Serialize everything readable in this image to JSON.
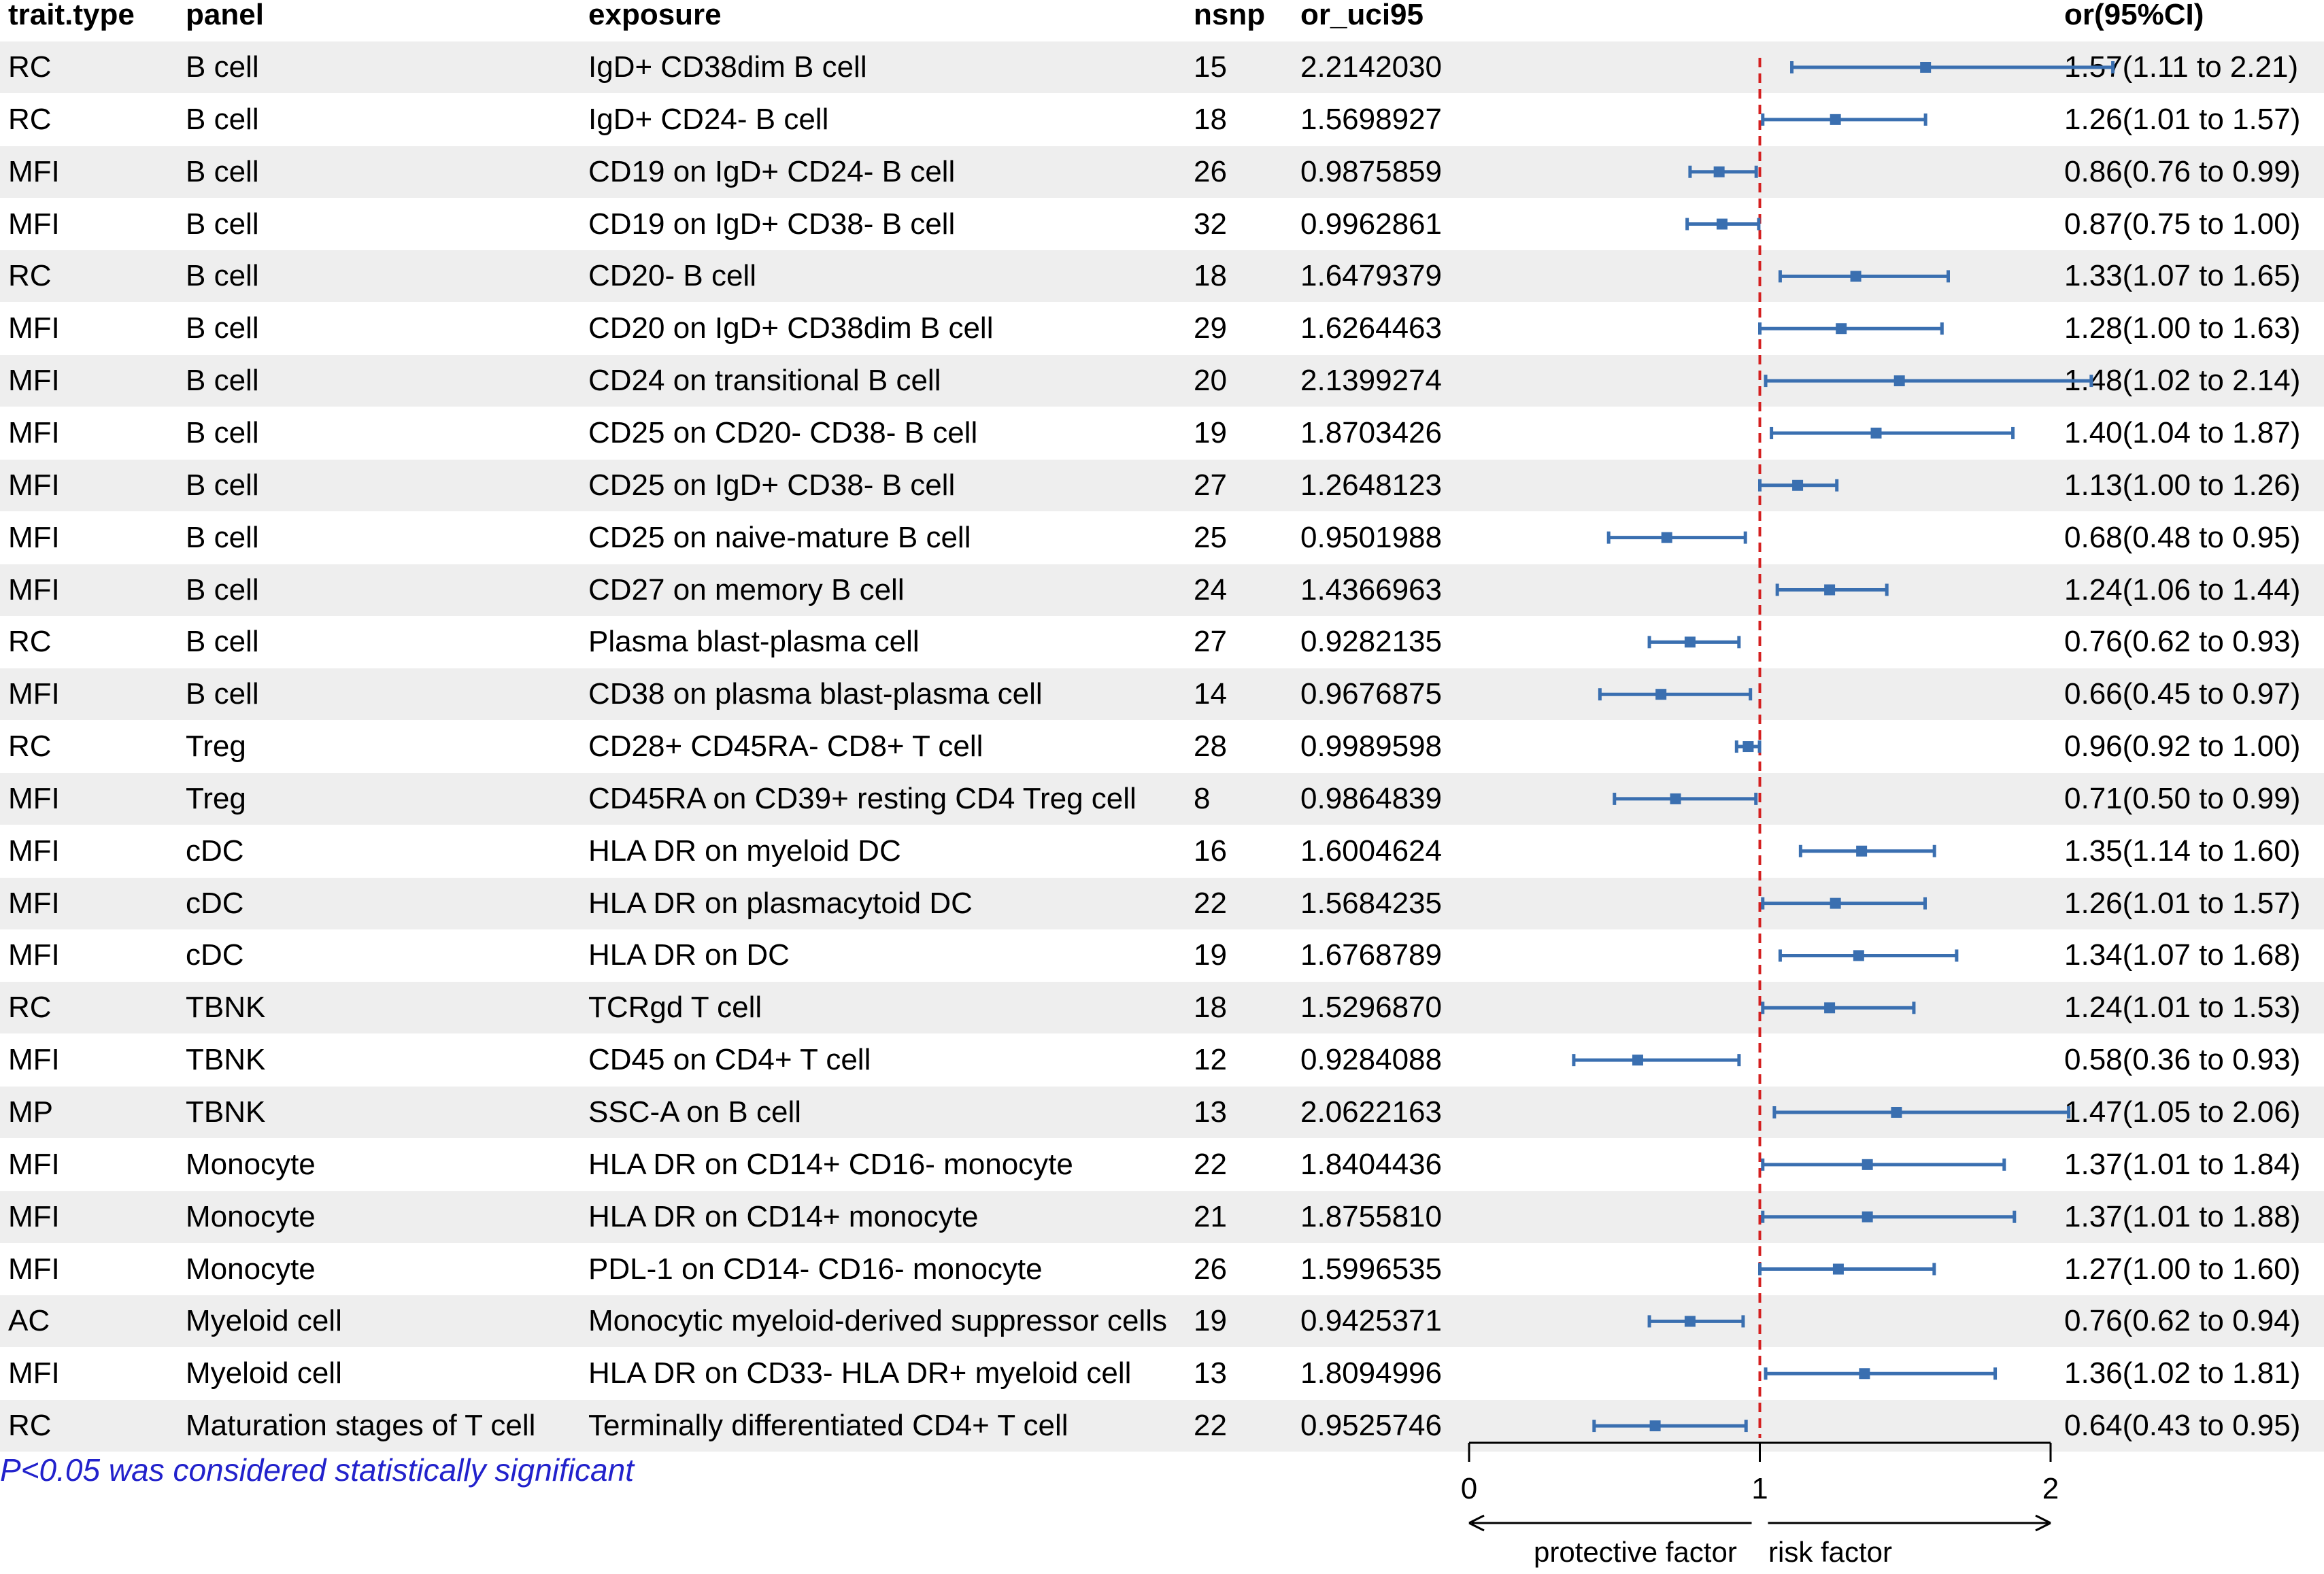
{
  "columns": {
    "trait_type": "trait.type",
    "panel": "panel",
    "exposure": "exposure",
    "nsnp": "nsnp",
    "or_uci95": "or_uci95",
    "or_ci": "or(95%CI)"
  },
  "rows": [
    {
      "trait_type": "RC",
      "panel": "B cell",
      "exposure": "IgD+ CD38dim B cell",
      "nsnp": "15",
      "or_uci95": "2.2142030",
      "or_ci": "1.57(1.11 to 2.21)"
    },
    {
      "trait_type": "RC",
      "panel": "B cell",
      "exposure": "IgD+ CD24- B cell",
      "nsnp": "18",
      "or_uci95": "1.5698927",
      "or_ci": "1.26(1.01 to 1.57)"
    },
    {
      "trait_type": "MFI",
      "panel": "B cell",
      "exposure": "CD19 on IgD+ CD24- B cell",
      "nsnp": "26",
      "or_uci95": "0.9875859",
      "or_ci": "0.86(0.76 to 0.99)"
    },
    {
      "trait_type": "MFI",
      "panel": "B cell",
      "exposure": "CD19 on IgD+ CD38- B cell",
      "nsnp": "32",
      "or_uci95": "0.9962861",
      "or_ci": "0.87(0.75 to 1.00)"
    },
    {
      "trait_type": "RC",
      "panel": "B cell",
      "exposure": "CD20- B cell",
      "nsnp": "18",
      "or_uci95": "1.6479379",
      "or_ci": "1.33(1.07 to 1.65)"
    },
    {
      "trait_type": "MFI",
      "panel": "B cell",
      "exposure": "CD20 on IgD+ CD38dim B cell",
      "nsnp": "29",
      "or_uci95": "1.6264463",
      "or_ci": "1.28(1.00 to 1.63)"
    },
    {
      "trait_type": "MFI",
      "panel": "B cell",
      "exposure": "CD24 on transitional B cell",
      "nsnp": "20",
      "or_uci95": "2.1399274",
      "or_ci": "1.48(1.02 to 2.14)"
    },
    {
      "trait_type": "MFI",
      "panel": "B cell",
      "exposure": "CD25 on CD20- CD38- B cell",
      "nsnp": "19",
      "or_uci95": "1.8703426",
      "or_ci": "1.40(1.04 to 1.87)"
    },
    {
      "trait_type": "MFI",
      "panel": "B cell",
      "exposure": "CD25 on IgD+ CD38- B cell",
      "nsnp": "27",
      "or_uci95": "1.2648123",
      "or_ci": "1.13(1.00 to 1.26)"
    },
    {
      "trait_type": "MFI",
      "panel": "B cell",
      "exposure": "CD25 on naive-mature B cell",
      "nsnp": "25",
      "or_uci95": "0.9501988",
      "or_ci": "0.68(0.48 to 0.95)"
    },
    {
      "trait_type": "MFI",
      "panel": "B cell",
      "exposure": "CD27 on memory B cell",
      "nsnp": "24",
      "or_uci95": "1.4366963",
      "or_ci": "1.24(1.06 to 1.44)"
    },
    {
      "trait_type": "RC",
      "panel": "B cell",
      "exposure": "Plasma blast-plasma cell",
      "nsnp": "27",
      "or_uci95": "0.9282135",
      "or_ci": "0.76(0.62 to 0.93)"
    },
    {
      "trait_type": "MFI",
      "panel": "B cell",
      "exposure": "CD38 on plasma blast-plasma cell",
      "nsnp": "14",
      "or_uci95": "0.9676875",
      "or_ci": "0.66(0.45 to 0.97)"
    },
    {
      "trait_type": "RC",
      "panel": "Treg",
      "exposure": "CD28+ CD45RA- CD8+ T cell",
      "nsnp": "28",
      "or_uci95": "0.9989598",
      "or_ci": "0.96(0.92 to 1.00)"
    },
    {
      "trait_type": "MFI",
      "panel": "Treg",
      "exposure": "CD45RA on CD39+ resting CD4 Treg cell",
      "nsnp": "8",
      "or_uci95": "0.9864839",
      "or_ci": "0.71(0.50 to 0.99)"
    },
    {
      "trait_type": "MFI",
      "panel": "cDC",
      "exposure": "HLA DR on myeloid DC",
      "nsnp": "16",
      "or_uci95": "1.6004624",
      "or_ci": "1.35(1.14 to 1.60)"
    },
    {
      "trait_type": "MFI",
      "panel": "cDC",
      "exposure": "HLA DR on plasmacytoid DC",
      "nsnp": "22",
      "or_uci95": "1.5684235",
      "or_ci": "1.26(1.01 to 1.57)"
    },
    {
      "trait_type": "MFI",
      "panel": "cDC",
      "exposure": "HLA DR on DC",
      "nsnp": "19",
      "or_uci95": "1.6768789",
      "or_ci": "1.34(1.07 to 1.68)"
    },
    {
      "trait_type": "RC",
      "panel": "TBNK",
      "exposure": "TCRgd T cell",
      "nsnp": "18",
      "or_uci95": "1.5296870",
      "or_ci": "1.24(1.01 to 1.53)"
    },
    {
      "trait_type": "MFI",
      "panel": "TBNK",
      "exposure": "CD45 on CD4+ T cell",
      "nsnp": "12",
      "or_uci95": "0.9284088",
      "or_ci": "0.58(0.36 to 0.93)"
    },
    {
      "trait_type": "MP",
      "panel": "TBNK",
      "exposure": "SSC-A on B cell",
      "nsnp": "13",
      "or_uci95": "2.0622163",
      "or_ci": "1.47(1.05 to 2.06)"
    },
    {
      "trait_type": "MFI",
      "panel": "Monocyte",
      "exposure": "HLA DR on CD14+ CD16- monocyte",
      "nsnp": "22",
      "or_uci95": "1.8404436",
      "or_ci": "1.37(1.01 to 1.84)"
    },
    {
      "trait_type": "MFI",
      "panel": "Monocyte",
      "exposure": "HLA DR on CD14+ monocyte",
      "nsnp": "21",
      "or_uci95": "1.8755810",
      "or_ci": "1.37(1.01 to 1.88)"
    },
    {
      "trait_type": "MFI",
      "panel": "Monocyte",
      "exposure": "PDL-1 on CD14- CD16- monocyte",
      "nsnp": "26",
      "or_uci95": "1.5996535",
      "or_ci": "1.27(1.00 to 1.60)"
    },
    {
      "trait_type": "AC",
      "panel": "Myeloid cell",
      "exposure": "Monocytic myeloid-derived suppressor cells",
      "nsnp": "19",
      "or_uci95": "0.9425371",
      "or_ci": "0.76(0.62 to 0.94)"
    },
    {
      "trait_type": "MFI",
      "panel": "Myeloid cell",
      "exposure": "HLA DR on CD33- HLA DR+ myeloid cell",
      "nsnp": "13",
      "or_uci95": "1.8094996",
      "or_ci": "1.36(1.02 to 1.81)"
    },
    {
      "trait_type": "RC",
      "panel": "Maturation stages of T cell",
      "exposure": "Terminally differentiated CD4+ T cell",
      "nsnp": "22",
      "or_uci95": "0.9525746",
      "or_ci": "0.64(0.43 to 0.95)"
    }
  ],
  "footnote": "P<0.05 was considered statistically significant",
  "axis_labels": {
    "left": "protective factor",
    "right": "risk factor"
  },
  "colors": {
    "estimate": "#3a6fb0",
    "reference_line": "#d42020",
    "shade": "#eeeeee"
  },
  "chart_data": {
    "type": "forest",
    "xlim": [
      0,
      2
    ],
    "xticks": [
      0,
      1,
      2
    ],
    "reference_line": 1,
    "grid": false,
    "categories": [
      "IgD+ CD38dim B cell",
      "IgD+ CD24- B cell",
      "CD19 on IgD+ CD24- B cell",
      "CD19 on IgD+ CD38- B cell",
      "CD20- B cell",
      "CD20 on IgD+ CD38dim B cell",
      "CD24 on transitional B cell",
      "CD25 on CD20- CD38- B cell",
      "CD25 on IgD+ CD38- B cell",
      "CD25 on naive-mature B cell",
      "CD27 on memory B cell",
      "Plasma blast-plasma cell",
      "CD38 on plasma blast-plasma cell",
      "CD28+ CD45RA- CD8+ T cell",
      "CD45RA on CD39+ resting CD4 Treg cell",
      "HLA DR on myeloid DC",
      "HLA DR on plasmacytoid DC",
      "HLA DR on DC",
      "TCRgd T cell",
      "CD45 on CD4+ T cell",
      "SSC-A on B cell",
      "HLA DR on CD14+ CD16- monocyte",
      "HLA DR on CD14+ monocyte",
      "PDL-1 on CD14- CD16- monocyte",
      "Monocytic myeloid-derived suppressor cells",
      "HLA DR on CD33- HLA DR+ myeloid cell",
      "Terminally differentiated CD4+ T cell"
    ],
    "or": [
      1.57,
      1.26,
      0.86,
      0.87,
      1.33,
      1.28,
      1.48,
      1.4,
      1.13,
      0.68,
      1.24,
      0.76,
      0.66,
      0.96,
      0.71,
      1.35,
      1.26,
      1.34,
      1.24,
      0.58,
      1.47,
      1.37,
      1.37,
      1.27,
      0.76,
      1.36,
      0.64
    ],
    "lower": [
      1.11,
      1.01,
      0.76,
      0.75,
      1.07,
      1.0,
      1.02,
      1.04,
      1.0,
      0.48,
      1.06,
      0.62,
      0.45,
      0.92,
      0.5,
      1.14,
      1.01,
      1.07,
      1.01,
      0.36,
      1.05,
      1.01,
      1.01,
      1.0,
      0.62,
      1.02,
      0.43
    ],
    "upper": [
      2.214203,
      1.5698927,
      0.9875859,
      0.9962861,
      1.6479379,
      1.6264463,
      2.1399274,
      1.8703426,
      1.2648123,
      0.9501988,
      1.4366963,
      0.9282135,
      0.9676875,
      0.9989598,
      0.9864839,
      1.6004624,
      1.5684235,
      1.6768789,
      1.529687,
      0.9284088,
      2.0622163,
      1.8404436,
      1.875581,
      1.5996535,
      0.9425371,
      1.8094996,
      0.9525746
    ]
  }
}
